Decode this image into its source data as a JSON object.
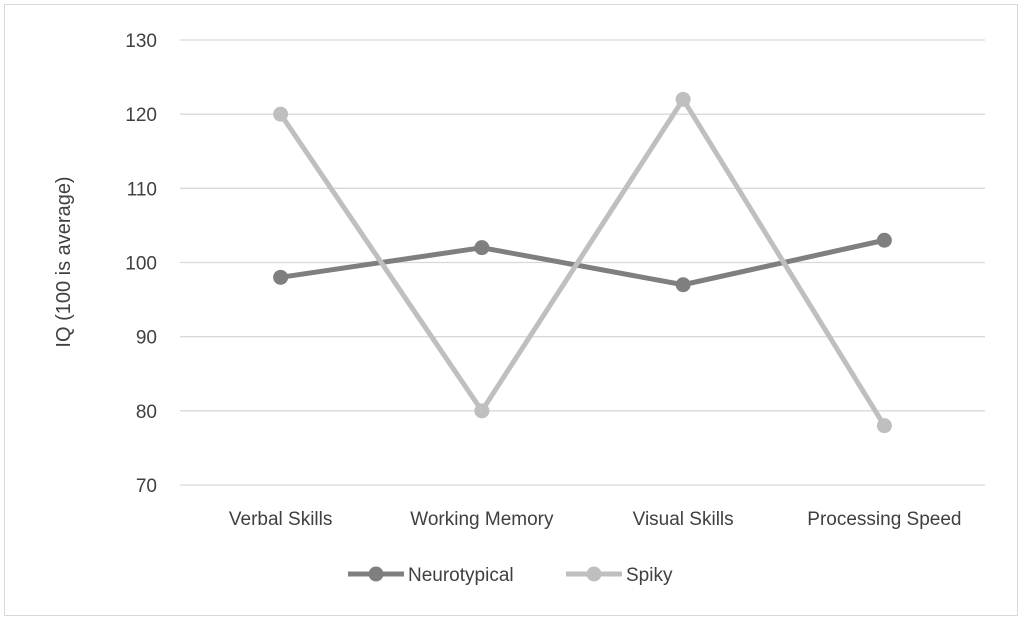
{
  "chart_data": {
    "type": "line",
    "title": "",
    "xlabel": "",
    "ylabel": "IQ (100 is average)",
    "categories": [
      "Verbal Skills",
      "Working Memory",
      "Visual Skills",
      "Processing Speed"
    ],
    "ylim": [
      70,
      130
    ],
    "yticks": [
      70,
      80,
      90,
      100,
      110,
      120,
      130
    ],
    "grid": true,
    "legend": "bottom",
    "series": [
      {
        "name": "Neurotypical",
        "values": [
          98,
          102,
          97,
          103
        ],
        "color": "#7f7f7f"
      },
      {
        "name": "Spiky",
        "values": [
          120,
          80,
          122,
          78
        ],
        "color": "#bfbfbf"
      }
    ]
  }
}
